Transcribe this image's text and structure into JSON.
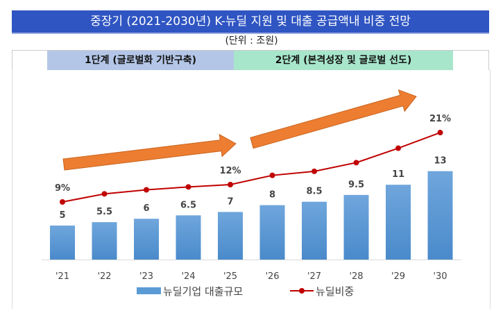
{
  "title": "중장기 (2021-2030년) K-뉴딜 지원 및 대출 공급액내 비중 전망",
  "unit": "(단위 : 조원)",
  "phases": [
    "1단계 (글로벌화 기반구축)",
    "2단계 (본격성장 및 글로벌 선도)"
  ],
  "colors": {
    "bar": "#5B9BD5",
    "line": "#C00000",
    "arrow": "#ED7D31",
    "title_bg": "#2F55C2"
  },
  "chart_data": {
    "type": "bar",
    "categories": [
      "'21",
      "'22",
      "'23",
      "'24",
      "'25",
      "'26",
      "'27",
      "'28",
      "'29",
      "'30"
    ],
    "series": [
      {
        "name": "뉴딜기업 대출규모",
        "type": "bar",
        "values": [
          5,
          5.5,
          6,
          6.5,
          7,
          8,
          8.5,
          9.5,
          11,
          13
        ],
        "labels": [
          "5",
          "5.5",
          "6",
          "6.5",
          "7",
          "8",
          "8.5",
          "9.5",
          "11",
          "13"
        ]
      },
      {
        "name": "뉴딜비중",
        "type": "line",
        "values": [
          9,
          10.4,
          11.1,
          11.6,
          12,
          13.6,
          14.3,
          15.8,
          18.3,
          21
        ],
        "labels": {
          "0": "9%",
          "4": "12%",
          "9": "21%"
        }
      }
    ],
    "legend": "bottom",
    "grid": false
  }
}
